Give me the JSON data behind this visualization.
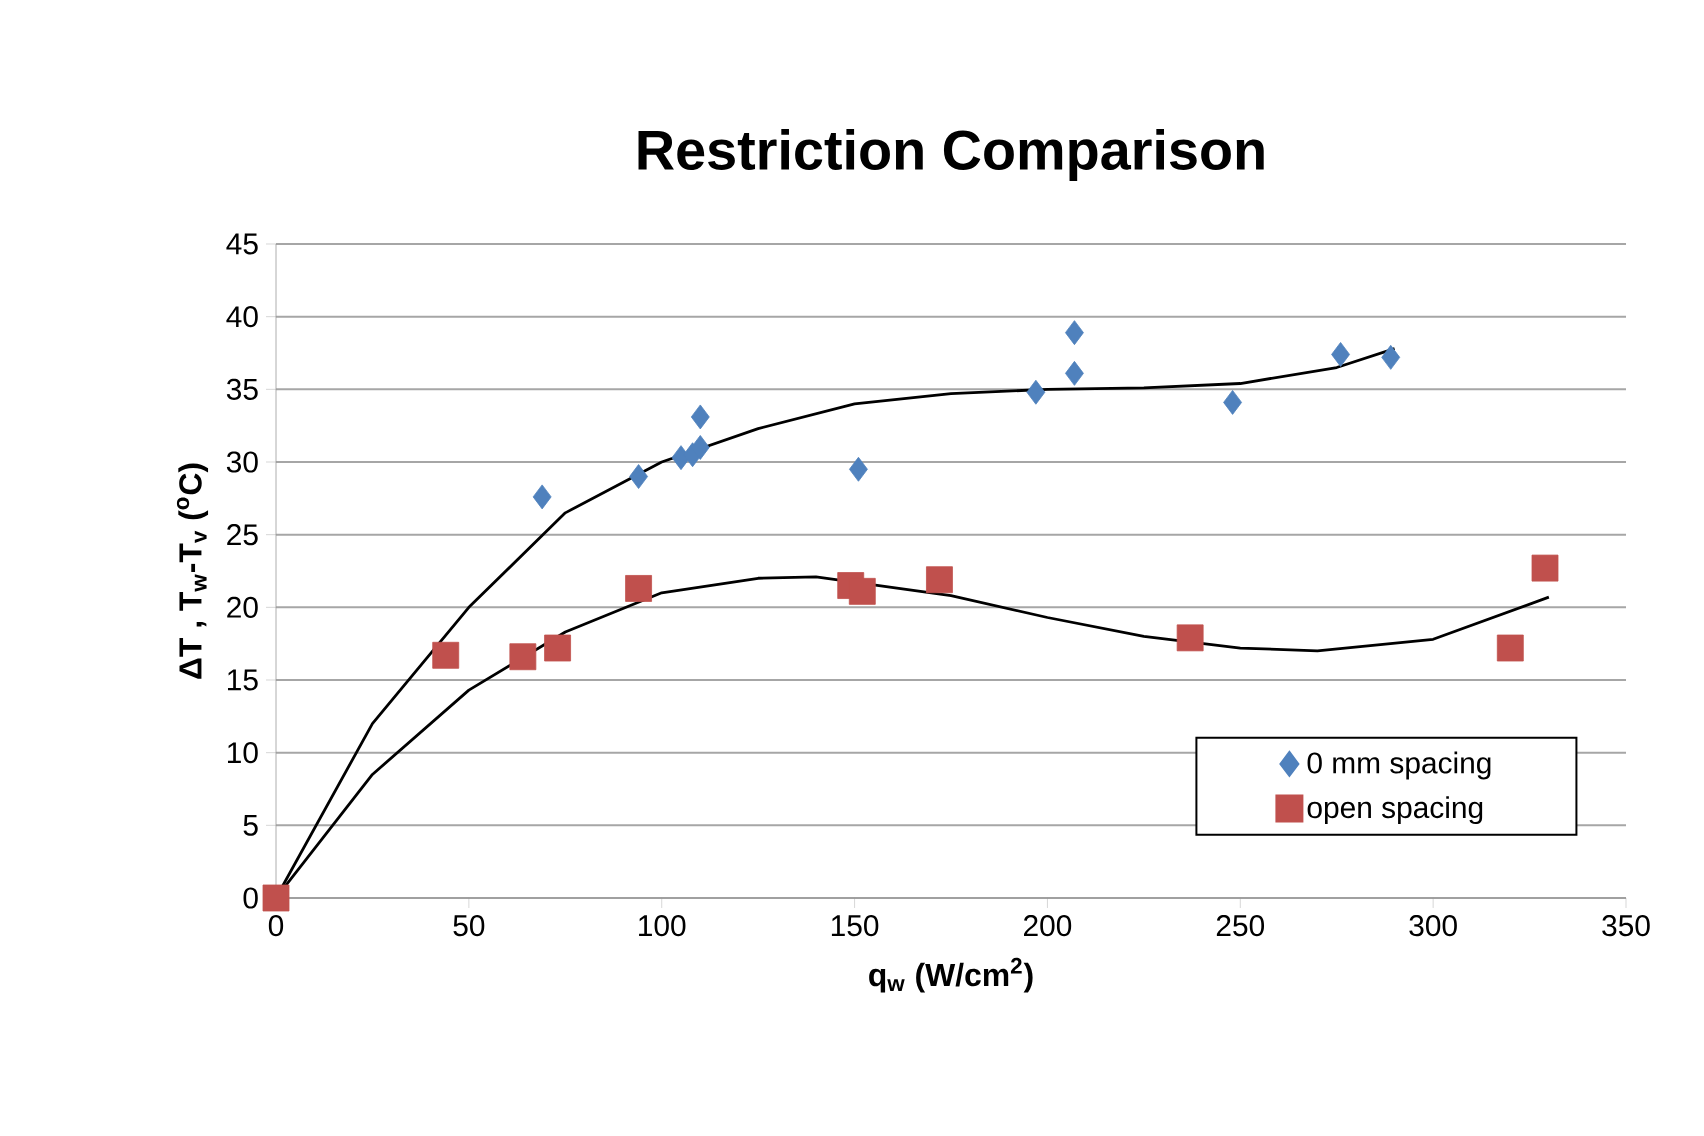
{
  "chart_data": {
    "type": "scatter",
    "title": "Restriction Comparison",
    "xlabel": "q$_{w}$ (W/cm$^{2}$)",
    "ylabel": "ΔT , T$_{w}$-T$_{v}$ ($^{o}$C)",
    "xlim": [
      0,
      350
    ],
    "ylim": [
      0,
      45
    ],
    "xticks": [
      0,
      50,
      100,
      150,
      200,
      250,
      300,
      350
    ],
    "yticks": [
      0,
      5,
      10,
      15,
      20,
      25,
      30,
      35,
      40,
      45
    ],
    "grid": "y",
    "legend": "bottom right",
    "series": [
      {
        "name": "0 mm spacing",
        "color": "#4f81bd",
        "marker": "diamond",
        "x": [
          69,
          94,
          105,
          108,
          110,
          110,
          151,
          197,
          207,
          207,
          248,
          276,
          289
        ],
        "values": [
          27.6,
          29,
          30.3,
          30.5,
          31,
          33.1,
          29.5,
          34.8,
          36.1,
          38.9,
          34.1,
          37.4,
          37.2
        ]
      },
      {
        "name": "open spacing",
        "color": "#c0504d",
        "marker": "square",
        "x": [
          0,
          44,
          64,
          73,
          94,
          149,
          152,
          172,
          237,
          320,
          329
        ],
        "values": [
          0,
          16.7,
          16.6,
          17.2,
          21.3,
          21.5,
          21.1,
          21.9,
          17.9,
          17.2,
          22.7
        ]
      },
      {
        "type": "line",
        "color": "#000000",
        "marker": "none",
        "line_style": "solid",
        "x": [
          0,
          25,
          50,
          75,
          100,
          125,
          150,
          175,
          200,
          225,
          250,
          275,
          290
        ],
        "values": [
          0,
          12,
          20,
          26.5,
          30,
          32.3,
          34,
          34.7,
          35,
          35.1,
          35.4,
          36.5,
          37.8
        ]
      },
      {
        "type": "line",
        "color": "#000000",
        "marker": "none",
        "line_style": "solid",
        "x": [
          0,
          25,
          50,
          75,
          100,
          125,
          140,
          175,
          200,
          225,
          250,
          270,
          300,
          330
        ],
        "values": [
          0,
          8.5,
          14.3,
          18.3,
          21,
          22,
          22.1,
          20.8,
          19.3,
          18,
          17.2,
          17,
          17.8,
          20.7
        ]
      }
    ]
  }
}
